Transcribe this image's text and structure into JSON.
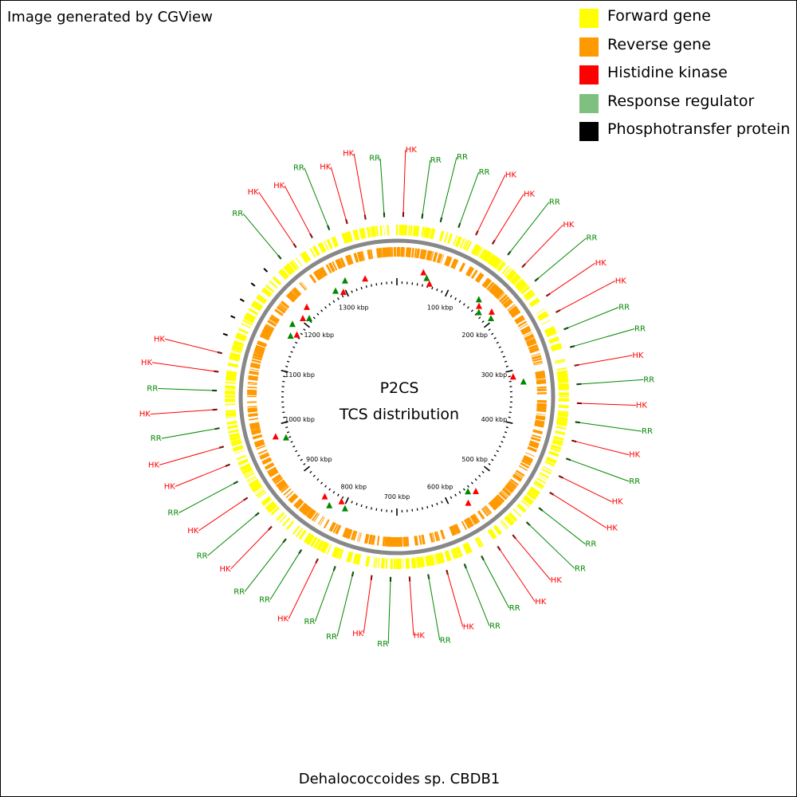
{
  "credit": "Image generated by CGView",
  "center_title": "P2CS",
  "center_subtitle": "TCS distribution",
  "organism": "Dehalococcoides sp. CBDB1",
  "colors": {
    "forward": "#ffff00",
    "reverse": "#ff9900",
    "histidine_kinase": "#ff0000",
    "response_regulator": "#7fbf7f",
    "response_regulator_marker": "#008800",
    "phosphotransfer": "#000000",
    "backbone": "#888888"
  },
  "legend": [
    {
      "label": "Forward gene",
      "color": "#ffff00"
    },
    {
      "label": "Reverse gene",
      "color": "#ff9900"
    },
    {
      "label": "Histidine kinase",
      "color": "#ff0000"
    },
    {
      "label": "Response regulator",
      "color": "#7fbf7f"
    },
    {
      "label": "Phosphotransfer protein",
      "color": "#000000"
    }
  ],
  "tick_labels": [
    "100 kbp",
    "200 kbp",
    "300 kbp",
    "400 kbp",
    "500 kbp",
    "600 kbp",
    "700 kbp",
    "800 kbp",
    "900 kbp",
    "1000 kbp",
    "1100 kbp",
    "1200 kbp",
    "1300 kbp"
  ],
  "callouts": [
    {
      "text": "RR",
      "type": "RR"
    },
    {
      "text": "HK",
      "type": "HK"
    },
    {
      "text": "HK",
      "type": "HK"
    },
    {
      "text": "RR",
      "type": "RR"
    },
    {
      "text": "HK",
      "type": "HK"
    },
    {
      "text": "HK",
      "type": "HK"
    },
    {
      "text": "RR",
      "type": "RR"
    },
    {
      "text": "HK",
      "type": "HK"
    },
    {
      "text": "RR",
      "type": "RR"
    },
    {
      "text": "RR",
      "type": "RR"
    },
    {
      "text": "RR",
      "type": "RR"
    },
    {
      "text": "HK",
      "type": "HK"
    },
    {
      "text": "HK",
      "type": "HK"
    },
    {
      "text": "RR",
      "type": "RR"
    },
    {
      "text": "HK",
      "type": "HK"
    },
    {
      "text": "RR",
      "type": "RR"
    },
    {
      "text": "HK",
      "type": "HK"
    },
    {
      "text": "HK",
      "type": "HK"
    },
    {
      "text": "RR",
      "type": "RR"
    },
    {
      "text": "RR",
      "type": "RR"
    },
    {
      "text": "HK",
      "type": "HK"
    },
    {
      "text": "RR",
      "type": "RR"
    },
    {
      "text": "HK",
      "type": "HK"
    },
    {
      "text": "RR",
      "type": "RR"
    },
    {
      "text": "HK",
      "type": "HK"
    },
    {
      "text": "RR",
      "type": "RR"
    },
    {
      "text": "HK",
      "type": "HK"
    },
    {
      "text": "HK",
      "type": "HK"
    },
    {
      "text": "RR",
      "type": "RR"
    },
    {
      "text": "RR",
      "type": "RR"
    },
    {
      "text": "HK",
      "type": "HK"
    },
    {
      "text": "HK",
      "type": "HK"
    },
    {
      "text": "RR",
      "type": "RR"
    },
    {
      "text": "RR",
      "type": "RR"
    },
    {
      "text": "HK",
      "type": "HK"
    },
    {
      "text": "RR",
      "type": "RR"
    },
    {
      "text": "HK",
      "type": "HK"
    },
    {
      "text": "RR",
      "type": "RR"
    },
    {
      "text": "HK",
      "type": "HK"
    },
    {
      "text": "RR",
      "type": "RR"
    },
    {
      "text": "RR",
      "type": "RR"
    },
    {
      "text": "HK",
      "type": "HK"
    },
    {
      "text": "RR",
      "type": "RR"
    },
    {
      "text": "RR",
      "type": "RR"
    },
    {
      "text": "HK",
      "type": "HK"
    },
    {
      "text": "RR",
      "type": "RR"
    },
    {
      "text": "HK",
      "type": "HK"
    },
    {
      "text": "RR",
      "type": "RR"
    },
    {
      "text": "HK",
      "type": "HK"
    },
    {
      "text": "HK",
      "type": "HK"
    },
    {
      "text": "RR",
      "type": "RR"
    },
    {
      "text": "HK",
      "type": "HK"
    },
    {
      "text": "RR",
      "type": "RR"
    },
    {
      "text": "HK",
      "type": "HK"
    },
    {
      "text": "HK",
      "type": "HK"
    }
  ]
}
